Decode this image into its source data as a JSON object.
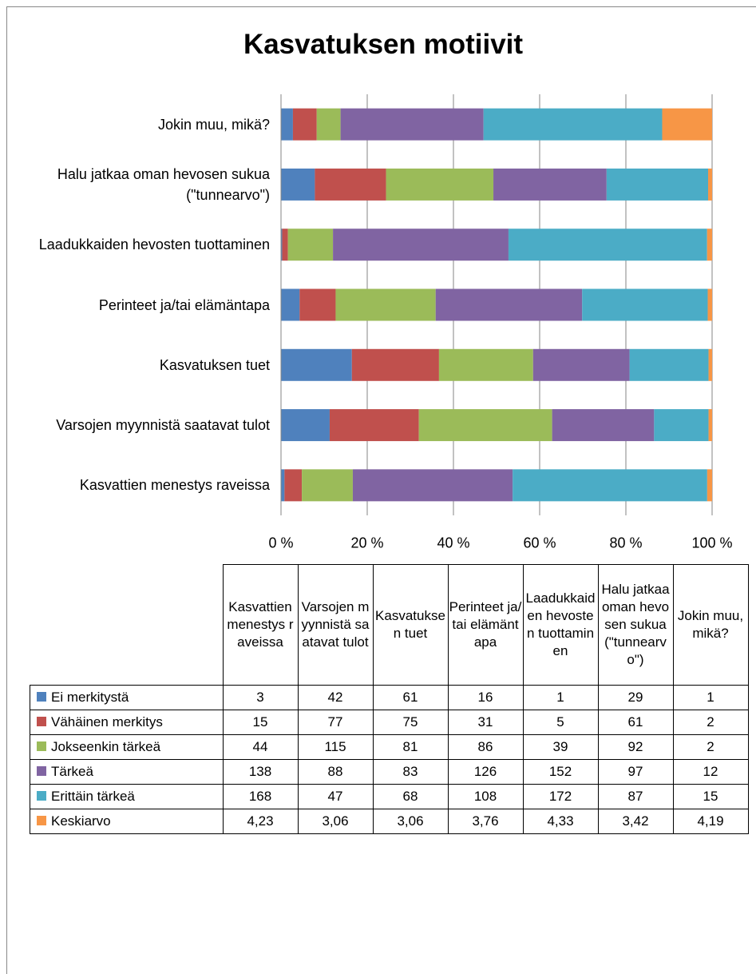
{
  "chart_data": {
    "type": "bar_stacked_percent",
    "title": "Kasvatuksen motiivit",
    "categories": [
      "Kasvattien menestys raveissa",
      "Varsojen myynnistä saatavat tulot",
      "Kasvatuksen tuet",
      "Perinteet ja/tai elämäntapa",
      "Laadukkaiden hevosten tuottaminen",
      "Halu jatkaa oman hevosen sukua (\"tunnearvo\")",
      "Jokin muu, mikä?"
    ],
    "series": [
      {
        "name": "Ei merkitystä",
        "color": "#4F81BD",
        "values": [
          3,
          42,
          61,
          16,
          1,
          29,
          1
        ]
      },
      {
        "name": "Vähäinen merkitys",
        "color": "#C0504D",
        "values": [
          15,
          77,
          75,
          31,
          5,
          61,
          2
        ]
      },
      {
        "name": "Jokseenkin tärkeä",
        "color": "#9BBB59",
        "values": [
          44,
          115,
          81,
          86,
          39,
          92,
          2
        ]
      },
      {
        "name": "Tärkeä",
        "color": "#8064A2",
        "values": [
          138,
          88,
          83,
          126,
          152,
          97,
          12
        ]
      },
      {
        "name": "Erittäin tärkeä",
        "color": "#4BACC6",
        "values": [
          168,
          47,
          68,
          108,
          172,
          87,
          15
        ]
      },
      {
        "name": "Keskiarvo",
        "color": "#F79646",
        "values": [
          4.23,
          3.06,
          3.06,
          3.76,
          4.33,
          3.42,
          4.19
        ],
        "value_labels": [
          "4,23",
          "3,06",
          "3,06",
          "3,76",
          "4,33",
          "3,42",
          "4,19"
        ]
      }
    ],
    "xlim": [
      0,
      100
    ],
    "xticks": [
      {
        "value": 0,
        "label": "0 %"
      },
      {
        "value": 20,
        "label": "20 %"
      },
      {
        "value": 40,
        "label": "40 %"
      },
      {
        "value": 60,
        "label": "60 %"
      },
      {
        "value": 80,
        "label": "80 %"
      },
      {
        "value": 100,
        "label": "100 %"
      }
    ],
    "grid": true
  }
}
